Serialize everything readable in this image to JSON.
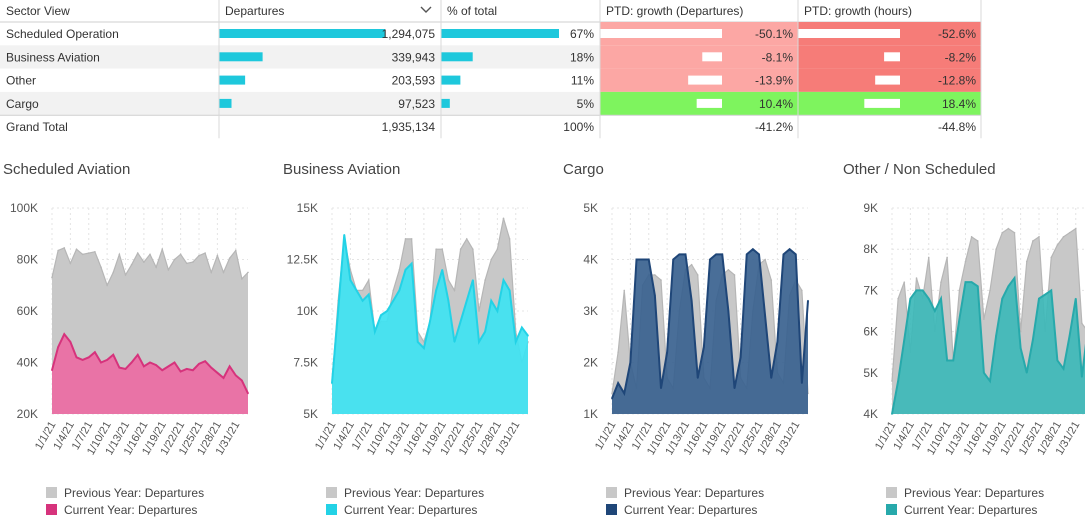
{
  "table": {
    "headers": [
      "Sector View",
      "Departures",
      "% of total",
      "PTD: growth (Departures)",
      "PTD: growth (hours)"
    ],
    "sort_indicator": "chevron-down-icon",
    "rows": [
      {
        "sector": "Scheduled Operation",
        "departures": "1,294,075",
        "dep_value": 1294075,
        "pct": "67%",
        "pct_value": 67,
        "growth_dep": "-50.1%",
        "growth_dep_value": -50.1,
        "growth_hours": "-52.6%",
        "growth_hours_value": -52.6
      },
      {
        "sector": "Business Aviation",
        "departures": "339,943",
        "dep_value": 339943,
        "pct": "18%",
        "pct_value": 18,
        "growth_dep": "-8.1%",
        "growth_dep_value": -8.1,
        "growth_hours": "-8.2%",
        "growth_hours_value": -8.2
      },
      {
        "sector": "Other",
        "departures": "203,593",
        "dep_value": 203593,
        "pct": "11%",
        "pct_value": 11,
        "growth_dep": "-13.9%",
        "growth_dep_value": -13.9,
        "growth_hours": "-12.8%",
        "growth_hours_value": -12.8
      },
      {
        "sector": "Cargo",
        "departures": "97,523",
        "dep_value": 97523,
        "pct": "5%",
        "pct_value": 5,
        "growth_dep": "10.4%",
        "growth_dep_value": 10.4,
        "growth_hours": "18.4%",
        "growth_hours_value": 18.4
      }
    ],
    "total": {
      "label": "Grand Total",
      "departures": "1,935,134",
      "pct": "100%",
      "growth_dep": "-41.2%",
      "growth_hours": "-44.8%"
    },
    "colors": {
      "bar": "#1ec8dc",
      "neg_light": "#fca7a4",
      "neg_strong": "#f67c78",
      "positive": "#7ef45e",
      "zebra": "#f2f2f2"
    }
  },
  "chart_data": [
    {
      "type": "area",
      "title": "Scheduled Aviation",
      "x": [
        "1/1/21",
        "1/2/21",
        "1/3/21",
        "1/4/21",
        "1/5/21",
        "1/6/21",
        "1/7/21",
        "1/8/21",
        "1/9/21",
        "1/10/21",
        "1/11/21",
        "1/12/21",
        "1/13/21",
        "1/14/21",
        "1/15/21",
        "1/16/21",
        "1/17/21",
        "1/18/21",
        "1/19/21",
        "1/20/21",
        "1/21/21",
        "1/22/21",
        "1/23/21",
        "1/24/21",
        "1/25/21",
        "1/26/21",
        "1/27/21",
        "1/28/21",
        "1/29/21",
        "1/30/21",
        "1/31/21",
        "2/1/21",
        "2/2/21"
      ],
      "xticks": [
        "1/1/21",
        "1/4/21",
        "1/7/21",
        "1/10/21",
        "1/13/21",
        "1/16/21",
        "1/19/21",
        "1/22/21",
        "1/25/21",
        "1/28/21",
        "1/31/21"
      ],
      "yticks": [
        "20K",
        "40K",
        "60K",
        "80K",
        "100K"
      ],
      "ylim": [
        20000,
        100000
      ],
      "series": [
        {
          "name": "Previous Year: Departures",
          "color": "#c8c8c8",
          "line": "#b6b6b6",
          "values": [
            73000,
            83500,
            84500,
            78500,
            84000,
            82000,
            82500,
            83000,
            77000,
            70000,
            75000,
            82000,
            74000,
            78000,
            82500,
            79000,
            82000,
            77000,
            84000,
            76000,
            80000,
            82000,
            78500,
            79000,
            81500,
            82500,
            75000,
            81500,
            75000,
            80500,
            83500,
            72500,
            75000
          ]
        },
        {
          "name": "Current Year: Departures",
          "color": "#ec6ba3",
          "line": "#d6337c",
          "values": [
            37000,
            46000,
            51000,
            48000,
            42000,
            41000,
            42000,
            44000,
            40000,
            41000,
            43000,
            38000,
            37500,
            40000,
            43000,
            38500,
            40000,
            39000,
            37000,
            38500,
            40000,
            36500,
            37500,
            37000,
            39500,
            40500,
            38000,
            36000,
            34000,
            38500,
            35000,
            33000,
            28000
          ]
        }
      ]
    },
    {
      "type": "area",
      "title": "Business Aviation",
      "x": [
        "1/1/21",
        "1/2/21",
        "1/3/21",
        "1/4/21",
        "1/5/21",
        "1/6/21",
        "1/7/21",
        "1/8/21",
        "1/9/21",
        "1/10/21",
        "1/11/21",
        "1/12/21",
        "1/13/21",
        "1/14/21",
        "1/15/21",
        "1/16/21",
        "1/17/21",
        "1/18/21",
        "1/19/21",
        "1/20/21",
        "1/21/21",
        "1/22/21",
        "1/23/21",
        "1/24/21",
        "1/25/21",
        "1/26/21",
        "1/27/21",
        "1/28/21",
        "1/29/21",
        "1/30/21",
        "1/31/21",
        "2/1/21",
        "2/2/21"
      ],
      "xticks": [
        "1/1/21",
        "1/4/21",
        "1/7/21",
        "1/10/21",
        "1/13/21",
        "1/16/21",
        "1/19/21",
        "1/22/21",
        "1/25/21",
        "1/28/21",
        "1/31/21"
      ],
      "yticks": [
        "5K",
        "7.5K",
        "10K",
        "12.5K",
        "15K"
      ],
      "ylim": [
        5000,
        15000
      ],
      "series": [
        {
          "name": "Previous Year: Departures",
          "color": "#c8c8c8",
          "line": "#b6b6b6",
          "values": [
            6500,
            10500,
            13500,
            12000,
            11000,
            11000,
            11500,
            9000,
            9500,
            9500,
            11000,
            12000,
            13500,
            13500,
            9000,
            8500,
            9500,
            13000,
            13000,
            11500,
            11000,
            13000,
            13500,
            13000,
            10000,
            11500,
            12500,
            13000,
            14500,
            13500,
            9000,
            7500,
            8500
          ]
        },
        {
          "name": "Current Year: Departures",
          "color": "#3ee3f2",
          "line": "#23d2e6",
          "values": [
            6500,
            10000,
            13700,
            11500,
            11000,
            10500,
            10800,
            9000,
            9800,
            10000,
            10500,
            11000,
            12000,
            12300,
            8500,
            8200,
            9500,
            11000,
            12000,
            10500,
            8500,
            9500,
            10500,
            11500,
            8500,
            9000,
            10500,
            10000,
            11500,
            11000,
            8500,
            9200,
            8800
          ]
        }
      ]
    },
    {
      "type": "area",
      "title": "Cargo",
      "x": [
        "1/1/21",
        "1/2/21",
        "1/3/21",
        "1/4/21",
        "1/5/21",
        "1/6/21",
        "1/7/21",
        "1/8/21",
        "1/9/21",
        "1/10/21",
        "1/11/21",
        "1/12/21",
        "1/13/21",
        "1/14/21",
        "1/15/21",
        "1/16/21",
        "1/17/21",
        "1/18/21",
        "1/19/21",
        "1/20/21",
        "1/21/21",
        "1/22/21",
        "1/23/21",
        "1/24/21",
        "1/25/21",
        "1/26/21",
        "1/27/21",
        "1/28/21",
        "1/29/21",
        "1/30/21",
        "1/31/21",
        "2/1/21",
        "2/2/21"
      ],
      "xticks": [
        "1/1/21",
        "1/4/21",
        "1/7/21",
        "1/10/21",
        "1/13/21",
        "1/16/21",
        "1/19/21",
        "1/22/21",
        "1/25/21",
        "1/28/21",
        "1/31/21"
      ],
      "yticks": [
        "1K",
        "2K",
        "3K",
        "4K",
        "5K"
      ],
      "ylim": [
        1000,
        5000
      ],
      "series": [
        {
          "name": "Previous Year: Departures",
          "color": "#c8c8c8",
          "line": "#b6b6b6",
          "values": [
            1400,
            2200,
            3400,
            2000,
            1500,
            3500,
            3700,
            3700,
            3600,
            1700,
            1500,
            3000,
            3800,
            3900,
            3700,
            1700,
            1500,
            3200,
            3700,
            3800,
            3700,
            1700,
            1500,
            3000,
            3900,
            4000,
            3600,
            1800,
            1600,
            3300,
            3600,
            3400,
            1400
          ]
        },
        {
          "name": "Current Year: Departures",
          "color": "#3a628f",
          "line": "#1f4678",
          "values": [
            1300,
            1600,
            1400,
            2000,
            4000,
            4000,
            4000,
            3300,
            1500,
            2200,
            4000,
            4100,
            4100,
            3200,
            1700,
            2300,
            4000,
            4100,
            4100,
            3000,
            1500,
            2100,
            4100,
            4200,
            4100,
            2900,
            1700,
            2400,
            4100,
            4200,
            4100,
            1600,
            3200
          ]
        }
      ]
    },
    {
      "type": "area",
      "title": "Other / Non Scheduled",
      "x": [
        "1/1/21",
        "1/2/21",
        "1/3/21",
        "1/4/21",
        "1/5/21",
        "1/6/21",
        "1/7/21",
        "1/8/21",
        "1/9/21",
        "1/10/21",
        "1/11/21",
        "1/12/21",
        "1/13/21",
        "1/14/21",
        "1/15/21",
        "1/16/21",
        "1/17/21",
        "1/18/21",
        "1/19/21",
        "1/20/21",
        "1/21/21",
        "1/22/21",
        "1/23/21",
        "1/24/21",
        "1/25/21",
        "1/26/21",
        "1/27/21",
        "1/28/21",
        "1/29/21",
        "1/30/21",
        "1/31/21",
        "2/1/21",
        "2/2/21"
      ],
      "xticks": [
        "1/1/21",
        "1/4/21",
        "1/7/21",
        "1/10/21",
        "1/13/21",
        "1/16/21",
        "1/19/21",
        "1/22/21",
        "1/25/21",
        "1/28/21",
        "1/31/21"
      ],
      "yticks": [
        "4K",
        "5K",
        "6K",
        "7K",
        "8K",
        "9K"
      ],
      "ylim": [
        4000,
        9000
      ],
      "series": [
        {
          "name": "Previous Year: Departures",
          "color": "#c8c8c8",
          "line": "#b6b6b6",
          "values": [
            4800,
            6800,
            7200,
            5500,
            7300,
            6800,
            7800,
            6000,
            7200,
            7800,
            5300,
            7000,
            7700,
            8300,
            8200,
            6300,
            7000,
            8000,
            8400,
            8500,
            8400,
            6000,
            7700,
            8200,
            8300,
            6000,
            7800,
            8100,
            8300,
            8400,
            8500,
            6200,
            6000
          ]
        },
        {
          "name": "Current Year: Departures",
          "color": "#3db8b8",
          "line": "#27a9ab",
          "values": [
            4000,
            4800,
            5800,
            6800,
            7000,
            7000,
            6800,
            6500,
            6800,
            5300,
            5300,
            6300,
            7200,
            7200,
            7100,
            5000,
            4800,
            5900,
            6800,
            7100,
            7300,
            5600,
            5000,
            5800,
            6800,
            6900,
            7000,
            5300,
            5100,
            5900,
            6800,
            4900,
            6100
          ]
        }
      ]
    }
  ]
}
